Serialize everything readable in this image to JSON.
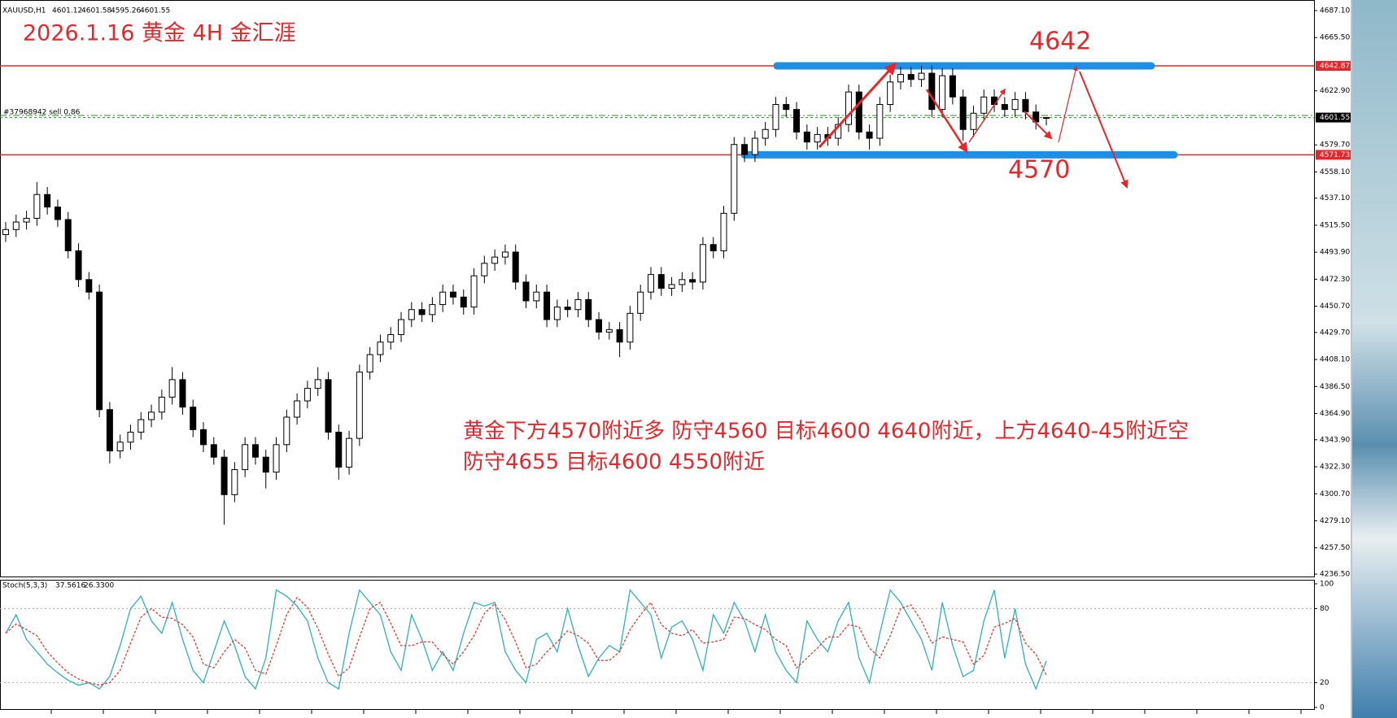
{
  "chart_data": {
    "type": "candlestick",
    "symbol": "XAUUSD,H1",
    "title": "2026.1.16 黄金 4H 金汇涯",
    "annotations": {
      "upper_target": "4642",
      "lower_target": "4570",
      "plan": [
        "黄金下方4570附近多 防守4560 目标4600 4640附近，上方4640-45附近空",
        "防守4655 目标4600 4550附近"
      ]
    },
    "open": [
      4508,
      4512,
      4518,
      4521,
      4540,
      4530,
      4520,
      4495,
      4472,
      4462,
      4368,
      4335,
      4342,
      4350,
      4360,
      4366,
      4378,
      4392,
      4370,
      4352,
      4340,
      4330,
      4300,
      4320,
      4340,
      4330,
      4318,
      4340,
      4362,
      4375,
      4385,
      4392,
      4350,
      4322,
      4345,
      4398,
      4412,
      4422,
      4428,
      4440,
      4448,
      4444,
      4452,
      4462,
      4458,
      4450,
      4475,
      4485,
      4490,
      4494,
      4470,
      4455,
      4462,
      4440,
      4450,
      4448,
      4456,
      4440,
      4430,
      4432,
      4422,
      4445,
      4462,
      4476,
      4465,
      4468,
      4472,
      4470,
      4500,
      4495,
      4525,
      4580,
      4572,
      4585,
      4592,
      4612,
      4608,
      4590,
      4582,
      4588,
      4585,
      4596,
      4622,
      4590,
      4585,
      4612,
      4630,
      4636,
      4632,
      4637,
      4608,
      4635,
      4618,
      4592,
      4605,
      4618,
      4612,
      4608,
      4616,
      4606,
      4601.12
    ],
    "high": [
      4518,
      4524,
      4527,
      4550,
      4546,
      4536,
      4526,
      4501,
      4478,
      4468,
      4374,
      4348,
      4356,
      4366,
      4372,
      4384,
      4402,
      4398,
      4376,
      4358,
      4346,
      4336,
      4326,
      4346,
      4346,
      4336,
      4346,
      4368,
      4381,
      4391,
      4402,
      4398,
      4356,
      4351,
      4404,
      4418,
      4428,
      4434,
      4446,
      4454,
      4454,
      4458,
      4468,
      4468,
      4464,
      4481,
      4491,
      4496,
      4500,
      4500,
      4476,
      4468,
      4468,
      4456,
      4456,
      4462,
      4462,
      4446,
      4438,
      4438,
      4451,
      4468,
      4482,
      4482,
      4474,
      4478,
      4478,
      4506,
      4506,
      4531,
      4586,
      4586,
      4591,
      4598,
      4618,
      4618,
      4614,
      4596,
      4594,
      4594,
      4602,
      4628,
      4628,
      4596,
      4618,
      4636,
      4642,
      4642,
      4643,
      4643,
      4641,
      4641,
      4624,
      4611,
      4624,
      4624,
      4618,
      4622,
      4622,
      4612,
      4601.58
    ],
    "low": [
      4502,
      4506,
      4512,
      4515,
      4524,
      4514,
      4489,
      4466,
      4456,
      4362,
      4325,
      4329,
      4336,
      4344,
      4354,
      4360,
      4372,
      4364,
      4346,
      4334,
      4324,
      4276,
      4294,
      4314,
      4324,
      4305,
      4312,
      4334,
      4356,
      4369,
      4379,
      4344,
      4312,
      4316,
      4339,
      4392,
      4406,
      4416,
      4422,
      4434,
      4438,
      4438,
      4446,
      4452,
      4444,
      4444,
      4469,
      4479,
      4484,
      4464,
      4449,
      4449,
      4434,
      4434,
      4442,
      4442,
      4434,
      4424,
      4424,
      4410,
      4416,
      4439,
      4456,
      4459,
      4459,
      4462,
      4464,
      4464,
      4489,
      4489,
      4519,
      4566,
      4566,
      4579,
      4586,
      4602,
      4584,
      4576,
      4576,
      4579,
      4579,
      4590,
      4584,
      4576,
      4579,
      4606,
      4624,
      4626,
      4626,
      4602,
      4602,
      4612,
      4583,
      4586,
      4599,
      4606,
      4602,
      4602,
      4600,
      4592,
      4595.26
    ],
    "close": [
      4512,
      4518,
      4521,
      4540,
      4530,
      4520,
      4495,
      4472,
      4462,
      4368,
      4335,
      4342,
      4350,
      4360,
      4366,
      4378,
      4392,
      4370,
      4352,
      4340,
      4330,
      4300,
      4320,
      4340,
      4330,
      4318,
      4340,
      4362,
      4375,
      4385,
      4392,
      4350,
      4322,
      4345,
      4398,
      4412,
      4422,
      4428,
      4440,
      4448,
      4444,
      4452,
      4462,
      4458,
      4450,
      4475,
      4485,
      4490,
      4494,
      4470,
      4455,
      4462,
      4440,
      4450,
      4448,
      4456,
      4440,
      4430,
      4432,
      4422,
      4445,
      4462,
      4476,
      4465,
      4468,
      4472,
      4470,
      4500,
      4495,
      4525,
      4580,
      4572,
      4585,
      4592,
      4612,
      4608,
      4590,
      4582,
      4588,
      4585,
      4596,
      4622,
      4590,
      4585,
      4612,
      4630,
      4636,
      4632,
      4637,
      4608,
      4635,
      4618,
      4592,
      4605,
      4618,
      4612,
      4608,
      4616,
      4606,
      4598,
      4601.55
    ],
    "up_color": "#ffffff",
    "down_color": "#000000",
    "ylim": [
      4236.5,
      4687.1
    ],
    "yticks": [
      {
        "value": 4687.1,
        "label": "4687.10"
      },
      {
        "value": 4665.5,
        "label": "4665.50"
      },
      {
        "value": 4622.9,
        "label": "4622.90"
      },
      {
        "value": 4579.7,
        "label": "4579.70"
      },
      {
        "value": 4558.1,
        "label": "4558.10"
      },
      {
        "value": 4537.1,
        "label": "4537.10"
      },
      {
        "value": 4515.5,
        "label": "4515.50"
      },
      {
        "value": 4493.9,
        "label": "4493.90"
      },
      {
        "value": 4472.3,
        "label": "4472.30"
      },
      {
        "value": 4450.7,
        "label": "4450.70"
      },
      {
        "value": 4429.7,
        "label": "4429.70"
      },
      {
        "value": 4408.1,
        "label": "4408.10"
      },
      {
        "value": 4386.5,
        "label": "4386.50"
      },
      {
        "value": 4364.9,
        "label": "4364.90"
      },
      {
        "value": 4343.9,
        "label": "4343.90"
      },
      {
        "value": 4322.3,
        "label": "4322.30"
      },
      {
        "value": 4300.7,
        "label": "4300.70"
      },
      {
        "value": 4279.1,
        "label": "4279.10"
      },
      {
        "value": 4257.5,
        "label": "4257.50"
      },
      {
        "value": 4236.5,
        "label": "4236.50"
      }
    ],
    "resistance": 4642.87,
    "support": 4571.73,
    "level_color": "#e8262a",
    "zone_color": "#1e8fe6",
    "order": {
      "label": "#37968942 sell 0.86",
      "price": 4603.2,
      "color": "#2a8f2a"
    },
    "last_price": 4601.55,
    "stochastic": {
      "type": "line",
      "name": "Stoch(5,3,3)",
      "readout": [
        "37.5616",
        "26.3300"
      ],
      "ylim": [
        0,
        100
      ],
      "yticks": [
        100,
        80,
        20,
        0
      ],
      "levels": [
        80,
        20
      ],
      "series": [
        {
          "color": "#2bb3b3",
          "style": "solid",
          "values": [
            60,
            75,
            55,
            45,
            35,
            28,
            22,
            18,
            20,
            15,
            25,
            50,
            80,
            90,
            70,
            60,
            85,
            55,
            30,
            20,
            45,
            70,
            50,
            25,
            15,
            40,
            95,
            90,
            82,
            70,
            40,
            20,
            15,
            60,
            95,
            85,
            75,
            45,
            30,
            75,
            55,
            30,
            45,
            30,
            60,
            85,
            82,
            85,
            45,
            30,
            20,
            55,
            60,
            45,
            80,
            50,
            25,
            40,
            50,
            45,
            95,
            85,
            75,
            40,
            65,
            70,
            55,
            30,
            75,
            60,
            85,
            70,
            45,
            75,
            45,
            30,
            20,
            70,
            55,
            45,
            70,
            85,
            40,
            20,
            60,
            95,
            85,
            70,
            55,
            30,
            85,
            50,
            25,
            30,
            70,
            95,
            40,
            80,
            35,
            15,
            37.5616
          ]
        },
        {
          "color": "#e53935",
          "style": "dotted",
          "values": [
            60,
            67.5,
            63,
            58,
            45,
            36,
            28,
            23,
            20,
            18,
            20,
            30,
            52,
            73,
            80,
            73,
            72,
            67,
            57,
            35,
            32,
            45,
            55,
            48,
            30,
            27,
            50,
            75,
            89,
            81,
            64,
            43,
            25,
            32,
            57,
            80,
            85,
            68,
            50,
            50,
            53,
            53,
            43,
            35,
            45,
            58,
            76,
            84,
            71,
            53,
            32,
            35,
            45,
            53,
            62,
            58,
            52,
            38,
            38,
            45,
            63,
            75,
            85,
            67,
            60,
            58,
            63,
            52,
            53,
            55,
            73,
            72,
            67,
            63,
            55,
            50,
            32,
            40,
            48,
            57,
            57,
            67,
            65,
            48,
            40,
            58,
            80,
            83,
            70,
            52,
            57,
            55,
            53,
            35,
            42,
            65,
            68,
            72,
            52,
            43,
            26.33
          ]
        }
      ]
    }
  }
}
